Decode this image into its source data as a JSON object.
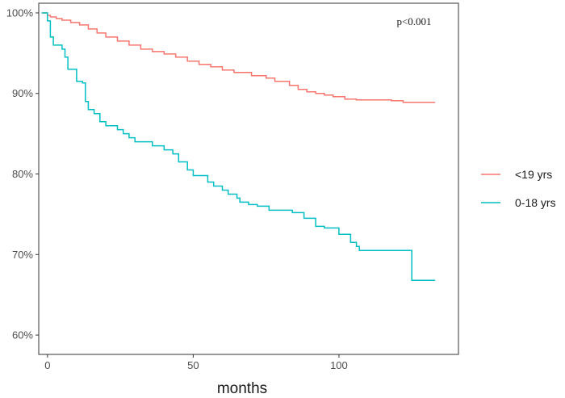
{
  "chart_data": {
    "type": "line",
    "title": "",
    "xlabel": "months",
    "ylabel": "",
    "xlim": [
      -3,
      141
    ],
    "ylim": [
      57.6,
      101.2
    ],
    "x_ticks": [
      0,
      50,
      100
    ],
    "x_tick_labels": [
      "0",
      "50",
      "100"
    ],
    "y_ticks": [
      60,
      70,
      80,
      90,
      100
    ],
    "y_tick_labels": [
      "60%",
      "70%",
      "80%",
      "90%",
      "100%"
    ],
    "grid": false,
    "step": true,
    "legend_position": "right",
    "annotation": "p<0.001",
    "series": [
      {
        "name": "<19 yrs",
        "color": "#F8766D",
        "x": [
          -2,
          0,
          1,
          3,
          5,
          8,
          11,
          14,
          17,
          20,
          24,
          28,
          32,
          36,
          40,
          44,
          48,
          52,
          56,
          60,
          64,
          70,
          75,
          78,
          83,
          86,
          89,
          92,
          95,
          98,
          102,
          106,
          110,
          118,
          122,
          133
        ],
        "y": [
          100,
          99.7,
          99.5,
          99.3,
          99.1,
          98.8,
          98.5,
          98.0,
          97.5,
          97.0,
          96.5,
          96.0,
          95.5,
          95.2,
          94.9,
          94.5,
          94.0,
          93.6,
          93.3,
          92.9,
          92.6,
          92.2,
          91.9,
          91.5,
          91.0,
          90.5,
          90.2,
          90.0,
          89.8,
          89.6,
          89.3,
          89.2,
          89.2,
          89.1,
          88.9,
          88.9
        ]
      },
      {
        "name": "0-18 yrs",
        "color": "#00BFC4",
        "x": [
          -2,
          0,
          1,
          2,
          5,
          6,
          7,
          10,
          12,
          13,
          14,
          16,
          18,
          20,
          24,
          26,
          28,
          30,
          36,
          40,
          43,
          45,
          48,
          50,
          55,
          57,
          60,
          62,
          65,
          66,
          68,
          69,
          72,
          76,
          78,
          80,
          84,
          88,
          92,
          95,
          100,
          104,
          106,
          107,
          124,
          125,
          133
        ],
        "y": [
          100,
          99.0,
          97.0,
          96.0,
          95.5,
          94.5,
          93.0,
          91.5,
          91.3,
          89.0,
          88.0,
          87.5,
          86.5,
          86.0,
          85.5,
          85.0,
          84.5,
          84.0,
          83.5,
          83.0,
          82.5,
          81.5,
          80.5,
          79.8,
          79.0,
          78.5,
          78.0,
          77.5,
          77.0,
          76.5,
          76.5,
          76.2,
          76.0,
          75.5,
          75.5,
          75.5,
          75.2,
          74.5,
          73.5,
          73.3,
          72.5,
          71.5,
          71.0,
          70.5,
          70.5,
          66.8,
          66.8
        ]
      }
    ]
  }
}
